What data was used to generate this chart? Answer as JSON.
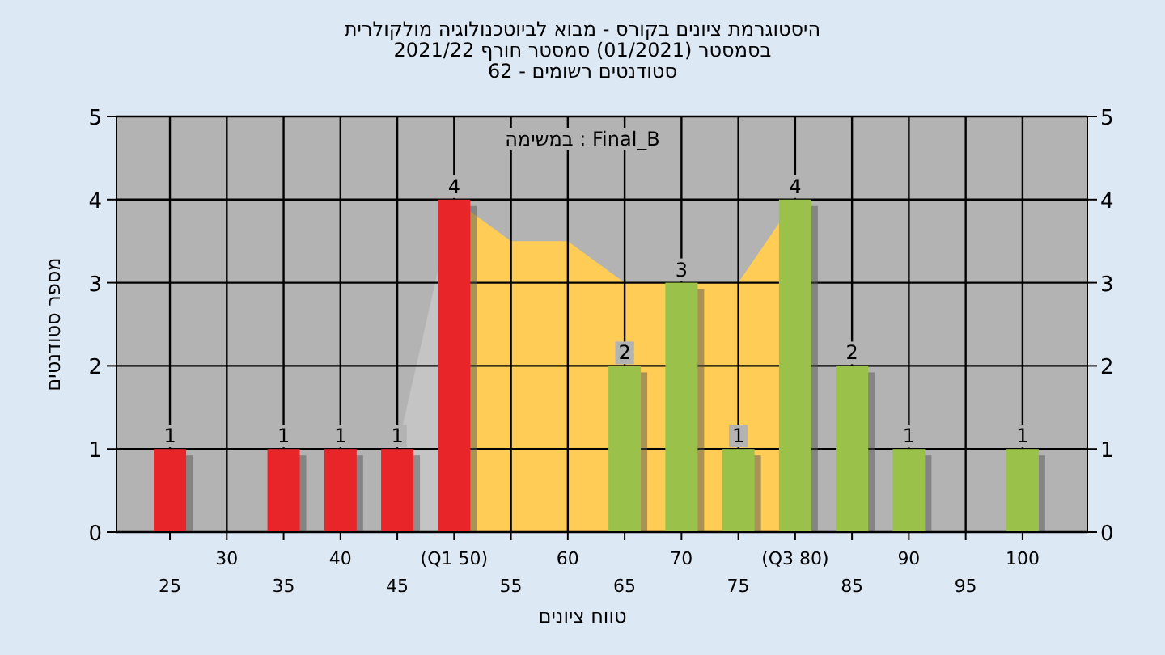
{
  "chart_data": {
    "type": "bar",
    "title": "היסטוגרמת ציונים בקורס - מבוא לביוטכנולוגיה מולקולרית",
    "subtitle": "בסמסטר (01/2021) סמסטר חורף 2021/22",
    "annotations": [
      "סטודנטים רשומים - 62",
      "Final_B : במשימה"
    ],
    "xlabel": "טווח ציונים",
    "ylabel": "מספר סטודנטים",
    "categories": [
      "25",
      "30",
      "35",
      "40",
      "45",
      "(Q1 50)",
      "55",
      "60",
      "65",
      "70",
      "75",
      "(Q3 80)",
      "85",
      "90",
      "95",
      "100"
    ],
    "series": [
      {
        "type": "area",
        "color": "#c4c4c4",
        "values": [
          null,
          null,
          null,
          null,
          1,
          4,
          null,
          null,
          null,
          null,
          null,
          null,
          null,
          null,
          null,
          null
        ]
      },
      {
        "type": "area",
        "color": "#ffcc55",
        "values": [
          null,
          null,
          null,
          null,
          null,
          4,
          3.5,
          3.5,
          3,
          null,
          3,
          4,
          null,
          null,
          null,
          null
        ]
      },
      {
        "values": [
          1,
          0,
          1,
          1,
          1,
          4,
          0,
          0,
          2,
          3,
          1,
          4,
          2,
          1,
          0,
          1
        ],
        "colors": [
          "#e8262a",
          "#e8262a",
          "#e8262a",
          "#e8262a",
          "#e8262a",
          "#e8262a",
          "#9ac24a",
          "#9ac24a",
          "#9ac24a",
          "#9ac24a",
          "#9ac24a",
          "#9ac24a",
          "#9ac24a",
          "#9ac24a",
          "#9ac24a",
          "#9ac24a"
        ],
        "value_labels": [
          "1",
          null,
          "1",
          "1",
          "1",
          "4",
          null,
          null,
          "2",
          "3",
          "1",
          "4",
          "2",
          "1",
          null,
          "1"
        ]
      }
    ],
    "ylim": [
      0,
      5
    ],
    "yticks": [
      0,
      1,
      2,
      3,
      4,
      5
    ],
    "y2lim": [
      0,
      5
    ],
    "y2ticks": [
      0,
      1,
      2,
      3,
      4,
      5
    ],
    "grid": true
  }
}
